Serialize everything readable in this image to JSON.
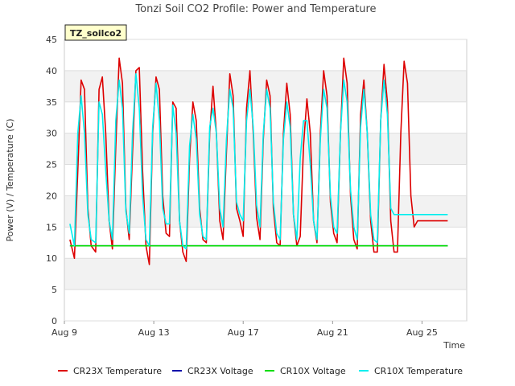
{
  "chart_data": {
    "type": "line",
    "title": "Tonzi Soil CO2 Profile: Power and Temperature",
    "xlabel": "Time",
    "ylabel": "Power (V) / Temperature (C)",
    "badge": "TZ_soilco2",
    "xlim": [
      0,
      18.0
    ],
    "ylim": [
      0,
      45
    ],
    "yticks": [
      0,
      5,
      10,
      15,
      20,
      25,
      30,
      35,
      40,
      45
    ],
    "xticks": [
      {
        "label": "Aug 9",
        "day": 0
      },
      {
        "label": "Aug 13",
        "day": 4
      },
      {
        "label": "Aug 17",
        "day": 8
      },
      {
        "label": "Aug 21",
        "day": 12
      },
      {
        "label": "Aug 25",
        "day": 16
      }
    ],
    "grid": true,
    "legend_position": "bottom",
    "series": [
      {
        "name": "CR23X Temperature",
        "color": "#dd0000",
        "x": [
          0.25,
          0.45,
          0.6,
          0.75,
          0.9,
          1.05,
          1.2,
          1.4,
          1.55,
          1.7,
          1.85,
          2.0,
          2.15,
          2.3,
          2.45,
          2.6,
          2.75,
          2.9,
          3.05,
          3.2,
          3.35,
          3.5,
          3.65,
          3.8,
          3.95,
          4.1,
          4.25,
          4.4,
          4.55,
          4.7,
          4.85,
          5.0,
          5.15,
          5.3,
          5.45,
          5.6,
          5.75,
          5.9,
          6.05,
          6.2,
          6.35,
          6.5,
          6.65,
          6.8,
          6.95,
          7.1,
          7.25,
          7.4,
          7.55,
          7.7,
          7.85,
          8.0,
          8.15,
          8.3,
          8.45,
          8.6,
          8.75,
          8.9,
          9.05,
          9.2,
          9.35,
          9.5,
          9.65,
          9.8,
          9.95,
          10.1,
          10.25,
          10.4,
          10.55,
          10.7,
          10.85,
          11.0,
          11.15,
          11.3,
          11.45,
          11.6,
          11.75,
          11.9,
          12.05,
          12.2,
          12.35,
          12.5,
          12.65,
          12.8,
          12.95,
          13.1,
          13.25,
          13.4,
          13.55,
          13.7,
          13.85,
          14.0,
          14.15,
          14.3,
          14.45,
          14.6,
          14.75,
          14.9,
          15.05,
          15.2,
          15.35,
          15.5,
          15.65,
          15.8,
          15.95,
          16.1,
          16.25,
          16.4,
          16.55,
          16.7,
          16.85,
          17.0,
          17.15
        ],
        "y": [
          13.0,
          10.0,
          24.0,
          38.5,
          37.0,
          18.0,
          12.0,
          11.0,
          37.0,
          39.0,
          30.0,
          16.0,
          11.5,
          28.0,
          42.0,
          38.0,
          18.0,
          13.0,
          27.0,
          40.0,
          40.5,
          24.0,
          12.0,
          9.0,
          30.0,
          39.0,
          37.0,
          20.0,
          14.0,
          13.5,
          35.0,
          34.0,
          16.0,
          11.0,
          9.5,
          26.0,
          35.0,
          32.0,
          18.0,
          13.0,
          12.5,
          30.0,
          37.5,
          30.0,
          16.0,
          13.0,
          27.0,
          39.5,
          36.0,
          18.0,
          16.0,
          13.5,
          34.0,
          40.0,
          30.0,
          16.5,
          13.0,
          29.0,
          38.5,
          36.0,
          18.0,
          12.5,
          12.0,
          30.0,
          38.0,
          33.0,
          17.0,
          12.0,
          13.5,
          28.0,
          35.5,
          30.0,
          16.0,
          12.5,
          30.0,
          40.0,
          36.0,
          19.0,
          14.0,
          12.5,
          30.0,
          42.0,
          38.0,
          20.0,
          13.0,
          11.5,
          33.0,
          38.5,
          30.0,
          16.0,
          11.0,
          11.0,
          32.0,
          41.0,
          35.0,
          16.0,
          11.0,
          11.0,
          30.0,
          41.5,
          38.0,
          20.0,
          15.0,
          16.0,
          16.0,
          16.0,
          16.0,
          16.0,
          16.0,
          16.0,
          16.0,
          16.0,
          16.0
        ]
      },
      {
        "name": "CR23X Voltage",
        "color": "#0000aa",
        "x": [
          0.25,
          17.15
        ],
        "y": [
          12.0,
          12.0
        ]
      },
      {
        "name": "CR10X Voltage",
        "color": "#00dd00",
        "x": [
          0.25,
          17.15
        ],
        "y": [
          12.0,
          12.0
        ]
      },
      {
        "name": "CR10X Temperature",
        "color": "#00eeee",
        "x": [
          0.25,
          0.45,
          0.6,
          0.75,
          0.9,
          1.05,
          1.2,
          1.4,
          1.55,
          1.7,
          1.85,
          2.0,
          2.15,
          2.3,
          2.45,
          2.6,
          2.75,
          2.9,
          3.05,
          3.2,
          3.35,
          3.5,
          3.65,
          3.8,
          3.95,
          4.1,
          4.25,
          4.4,
          4.55,
          4.7,
          4.85,
          5.0,
          5.15,
          5.3,
          5.45,
          5.6,
          5.75,
          5.9,
          6.05,
          6.2,
          6.35,
          6.5,
          6.65,
          6.8,
          6.95,
          7.1,
          7.25,
          7.4,
          7.55,
          7.7,
          7.85,
          8.0,
          8.15,
          8.3,
          8.45,
          8.6,
          8.75,
          8.9,
          9.05,
          9.2,
          9.35,
          9.5,
          9.65,
          9.8,
          9.95,
          10.1,
          10.25,
          10.4,
          10.55,
          10.7,
          10.85,
          11.0,
          11.15,
          11.3,
          11.45,
          11.6,
          11.75,
          11.9,
          12.05,
          12.2,
          12.35,
          12.5,
          12.65,
          12.8,
          12.95,
          13.1,
          13.25,
          13.4,
          13.55,
          13.7,
          13.85,
          14.0,
          14.15,
          14.3,
          14.45,
          14.6,
          14.75,
          14.9,
          15.05,
          15.2,
          15.35,
          15.5,
          15.65,
          15.8,
          15.95,
          16.1,
          16.25,
          16.4,
          16.55,
          16.7,
          16.85,
          17.0,
          17.15
        ],
        "y": [
          15.5,
          12.0,
          30.0,
          36.0,
          30.0,
          17.0,
          13.0,
          12.5,
          35.0,
          33.0,
          24.0,
          16.0,
          13.0,
          32.0,
          38.5,
          34.0,
          17.5,
          14.0,
          30.0,
          39.5,
          34.0,
          20.0,
          13.0,
          12.0,
          31.0,
          38.0,
          32.0,
          18.0,
          15.5,
          15.5,
          34.5,
          30.0,
          16.0,
          12.0,
          11.5,
          28.0,
          33.0,
          29.0,
          17.0,
          13.5,
          13.0,
          31.0,
          34.0,
          30.0,
          18.0,
          15.0,
          29.0,
          37.0,
          34.0,
          19.0,
          17.0,
          16.0,
          32.0,
          37.0,
          31.0,
          18.5,
          15.0,
          30.0,
          37.0,
          34.0,
          19.0,
          14.0,
          13.0,
          29.0,
          35.0,
          31.0,
          17.0,
          13.0,
          26.0,
          32.0,
          32.0,
          25.0,
          16.0,
          13.0,
          29.0,
          37.0,
          34.0,
          20.0,
          15.0,
          14.0,
          30.0,
          38.5,
          35.0,
          21.0,
          15.0,
          13.0,
          31.0,
          37.0,
          30.0,
          17.0,
          13.0,
          12.5,
          32.0,
          38.5,
          33.0,
          18.0,
          17.0,
          17.0,
          17.0,
          17.0,
          17.0,
          17.0,
          17.0,
          17.0,
          17.0,
          17.0,
          17.0,
          17.0,
          17.0,
          17.0,
          17.0,
          17.0,
          17.0
        ]
      }
    ]
  }
}
